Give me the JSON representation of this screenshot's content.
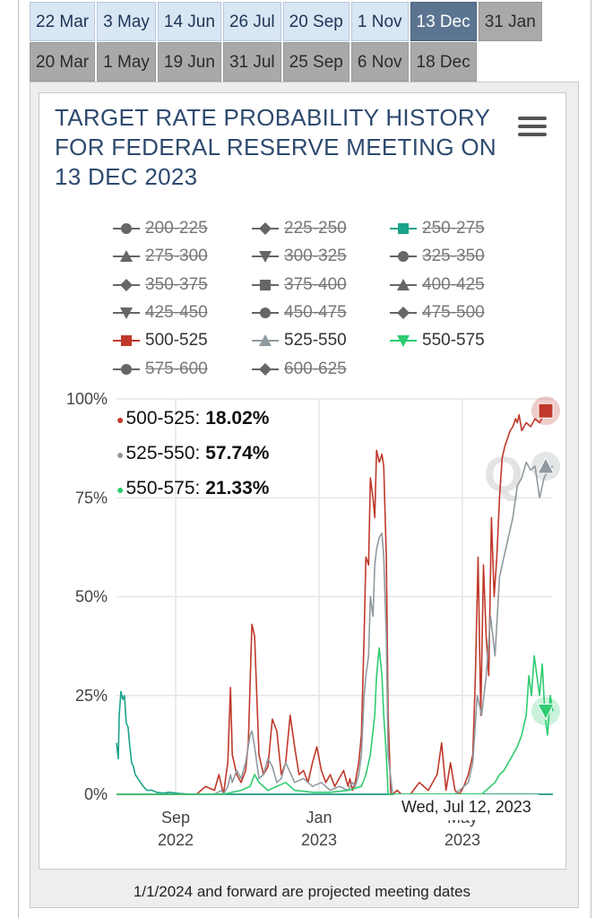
{
  "tabs_row1": [
    {
      "label": "22 Mar",
      "style": "blue"
    },
    {
      "label": "3 May",
      "style": "blue"
    },
    {
      "label": "14 Jun",
      "style": "blue"
    },
    {
      "label": "26 Jul",
      "style": "blue"
    },
    {
      "label": "20 Sep",
      "style": "blue"
    },
    {
      "label": "1 Nov",
      "style": "blue"
    },
    {
      "label": "13 Dec",
      "style": "active"
    },
    {
      "label": "31 Jan",
      "style": "gray"
    }
  ],
  "tabs_row2": [
    {
      "label": "20 Mar",
      "style": "gray"
    },
    {
      "label": "1 May",
      "style": "gray"
    },
    {
      "label": "19 Jun",
      "style": "gray"
    },
    {
      "label": "31 Jul",
      "style": "gray"
    },
    {
      "label": "25 Sep",
      "style": "gray"
    },
    {
      "label": "6 Nov",
      "style": "gray"
    },
    {
      "label": "18 Dec",
      "style": "gray"
    }
  ],
  "footnote": "1/1/2024 and forward are projected meeting dates",
  "colors": {
    "red": "#c0392b",
    "gray": "#8f9aa0",
    "green": "#2ecc71",
    "teal": "#1aa38a",
    "grid": "#e6e6e6"
  },
  "chart_data": {
    "type": "line",
    "title": "TARGET RATE PROBABILITY HISTORY FOR FEDERAL RESERVE MEETING ON 13 DEC 2023",
    "ylim": [
      0,
      100
    ],
    "y_ticks": [
      "0%",
      "25%",
      "50%",
      "75%",
      "100%"
    ],
    "x_ticks": [
      {
        "line1": "Sep",
        "line2": "2022"
      },
      {
        "line1": "Jan",
        "line2": "2023"
      },
      {
        "line1": "May",
        "line2": "2023"
      }
    ],
    "grid": true,
    "legend_position": "top",
    "legend": [
      {
        "label": "200-225",
        "marker": "circle",
        "visible": false
      },
      {
        "label": "225-250",
        "marker": "diamond",
        "visible": false
      },
      {
        "label": "250-275",
        "marker": "square",
        "visible": false,
        "color": "#1aa38a"
      },
      {
        "label": "275-300",
        "marker": "triangle",
        "visible": false
      },
      {
        "label": "300-325",
        "marker": "triangle-down",
        "visible": false
      },
      {
        "label": "325-350",
        "marker": "circle",
        "visible": false
      },
      {
        "label": "350-375",
        "marker": "diamond",
        "visible": false
      },
      {
        "label": "375-400",
        "marker": "square",
        "visible": false
      },
      {
        "label": "400-425",
        "marker": "triangle",
        "visible": false
      },
      {
        "label": "425-450",
        "marker": "triangle-down",
        "visible": false
      },
      {
        "label": "450-475",
        "marker": "circle",
        "visible": false
      },
      {
        "label": "475-500",
        "marker": "diamond",
        "visible": false
      },
      {
        "label": "500-525",
        "marker": "square",
        "visible": true,
        "color": "#c0392b"
      },
      {
        "label": "525-550",
        "marker": "triangle",
        "visible": true,
        "color": "#8f9aa0"
      },
      {
        "label": "550-575",
        "marker": "triangle-down",
        "visible": true,
        "color": "#2ecc71"
      },
      {
        "label": "575-600",
        "marker": "circle",
        "visible": false
      },
      {
        "label": "600-625",
        "marker": "diamond",
        "visible": false
      }
    ],
    "series": [
      {
        "name": "250-275",
        "color": "#1aa38a",
        "x": [
          0,
          2,
          3,
          5,
          7,
          9,
          11,
          13,
          15,
          17,
          19,
          21,
          24,
          27,
          30,
          34,
          40,
          45,
          52,
          60,
          70,
          85,
          100,
          130,
          160,
          200,
          260,
          320,
          382,
          420,
          490
        ],
        "values": [
          13,
          9,
          20,
          26,
          24,
          25,
          18,
          17,
          12,
          8,
          7,
          5,
          4,
          3,
          2,
          1,
          1,
          0.5,
          0.3,
          0.5,
          0.2,
          0,
          0,
          0,
          0,
          0,
          0,
          0,
          0,
          0,
          0
        ]
      },
      {
        "name": "500-525",
        "color": "#c0392b",
        "x": [
          0,
          80,
          90,
          100,
          110,
          115,
          118,
          120,
          125,
          128,
          130,
          135,
          140,
          145,
          148,
          150,
          152,
          155,
          160,
          165,
          170,
          175,
          180,
          185,
          190,
          195,
          200,
          205,
          210,
          215,
          220,
          225,
          230,
          235,
          240,
          245,
          250,
          255,
          260,
          262,
          265,
          268,
          272,
          275,
          278,
          280,
          283,
          285,
          288,
          290,
          292,
          295,
          298,
          300,
          303,
          305,
          308,
          310,
          315,
          320,
          325,
          330,
          340,
          350,
          360,
          365,
          370,
          375,
          380,
          385,
          390,
          395,
          400,
          403,
          406,
          409,
          412,
          415,
          418,
          421,
          424,
          427,
          430,
          433,
          436,
          439,
          442,
          445,
          448,
          450,
          452,
          455,
          460,
          465,
          470,
          475,
          480,
          485,
          490
        ],
        "values": [
          0,
          0,
          0,
          2,
          1,
          5,
          2,
          0,
          8,
          27,
          10,
          5,
          3,
          6,
          13,
          28,
          43,
          40,
          10,
          5,
          7,
          19,
          16,
          5,
          8,
          20,
          12,
          5,
          6,
          3,
          8,
          12,
          6,
          3,
          5,
          2,
          4,
          6,
          2,
          4,
          1,
          3,
          8,
          15,
          40,
          60,
          58,
          80,
          75,
          70,
          87,
          84,
          86,
          83,
          60,
          20,
          0,
          0,
          1,
          0,
          0,
          0,
          3,
          1,
          5,
          13,
          1,
          8,
          1,
          0,
          2,
          5,
          10,
          30,
          60,
          20,
          58,
          40,
          30,
          70,
          50,
          60,
          75,
          85,
          88,
          90,
          92,
          93,
          95,
          94,
          96,
          92,
          94,
          93,
          95,
          94,
          96,
          96,
          97
        ]
      },
      {
        "name": "525-550",
        "color": "#8f9aa0",
        "x": [
          0,
          100,
          110,
          118,
          120,
          125,
          128,
          130,
          135,
          140,
          145,
          150,
          152,
          155,
          160,
          165,
          170,
          175,
          180,
          185,
          190,
          200,
          210,
          220,
          230,
          240,
          250,
          260,
          265,
          268,
          272,
          275,
          278,
          280,
          283,
          285,
          288,
          290,
          292,
          295,
          298,
          300,
          303,
          305,
          310,
          320,
          340,
          360,
          380,
          395,
          400,
          405,
          410,
          415,
          420,
          425,
          430,
          435,
          440,
          445,
          450,
          455,
          460,
          465,
          470,
          475,
          480,
          485,
          490
        ],
        "values": [
          0,
          0,
          0,
          1,
          0,
          2,
          5,
          3,
          6,
          4,
          8,
          15,
          16,
          12,
          4,
          5,
          9,
          7,
          3,
          4,
          8,
          3,
          4,
          2,
          3,
          1,
          2,
          1,
          3,
          2,
          5,
          10,
          25,
          30,
          35,
          50,
          45,
          58,
          62,
          65,
          66,
          60,
          40,
          10,
          0,
          0,
          0,
          0,
          0,
          3,
          8,
          25,
          20,
          30,
          45,
          35,
          55,
          60,
          65,
          70,
          78,
          80,
          84,
          82,
          83,
          75,
          80,
          82,
          83
        ]
      },
      {
        "name": "550-575",
        "color": "#2ecc71",
        "x": [
          0,
          120,
          140,
          150,
          155,
          160,
          170,
          180,
          190,
          200,
          220,
          240,
          260,
          275,
          280,
          285,
          290,
          292,
          295,
          298,
          300,
          303,
          305,
          310,
          330,
          360,
          390,
          410,
          420,
          425,
          430,
          435,
          440,
          445,
          450,
          455,
          460,
          463,
          466,
          469,
          472,
          475,
          478,
          481,
          484,
          487,
          490
        ],
        "values": [
          0,
          0,
          1,
          2,
          5,
          3,
          1,
          2,
          3,
          1,
          0.5,
          0.5,
          1,
          2,
          5,
          10,
          20,
          30,
          37,
          30,
          20,
          10,
          0,
          0,
          0,
          0,
          0,
          0,
          2,
          3,
          5,
          6,
          8,
          10,
          12,
          15,
          20,
          30,
          25,
          35,
          30,
          25,
          33,
          20,
          15,
          25,
          21
        ]
      }
    ],
    "tooltip": {
      "date": "Wed, Jul 12, 2023",
      "rows": [
        {
          "label": "500-525",
          "value": "18.02%",
          "color": "#c0392b"
        },
        {
          "label": "525-550",
          "value": "57.74%",
          "color": "#8f9aa0"
        },
        {
          "label": "550-575",
          "value": "21.33%",
          "color": "#2ecc71"
        }
      ]
    }
  }
}
